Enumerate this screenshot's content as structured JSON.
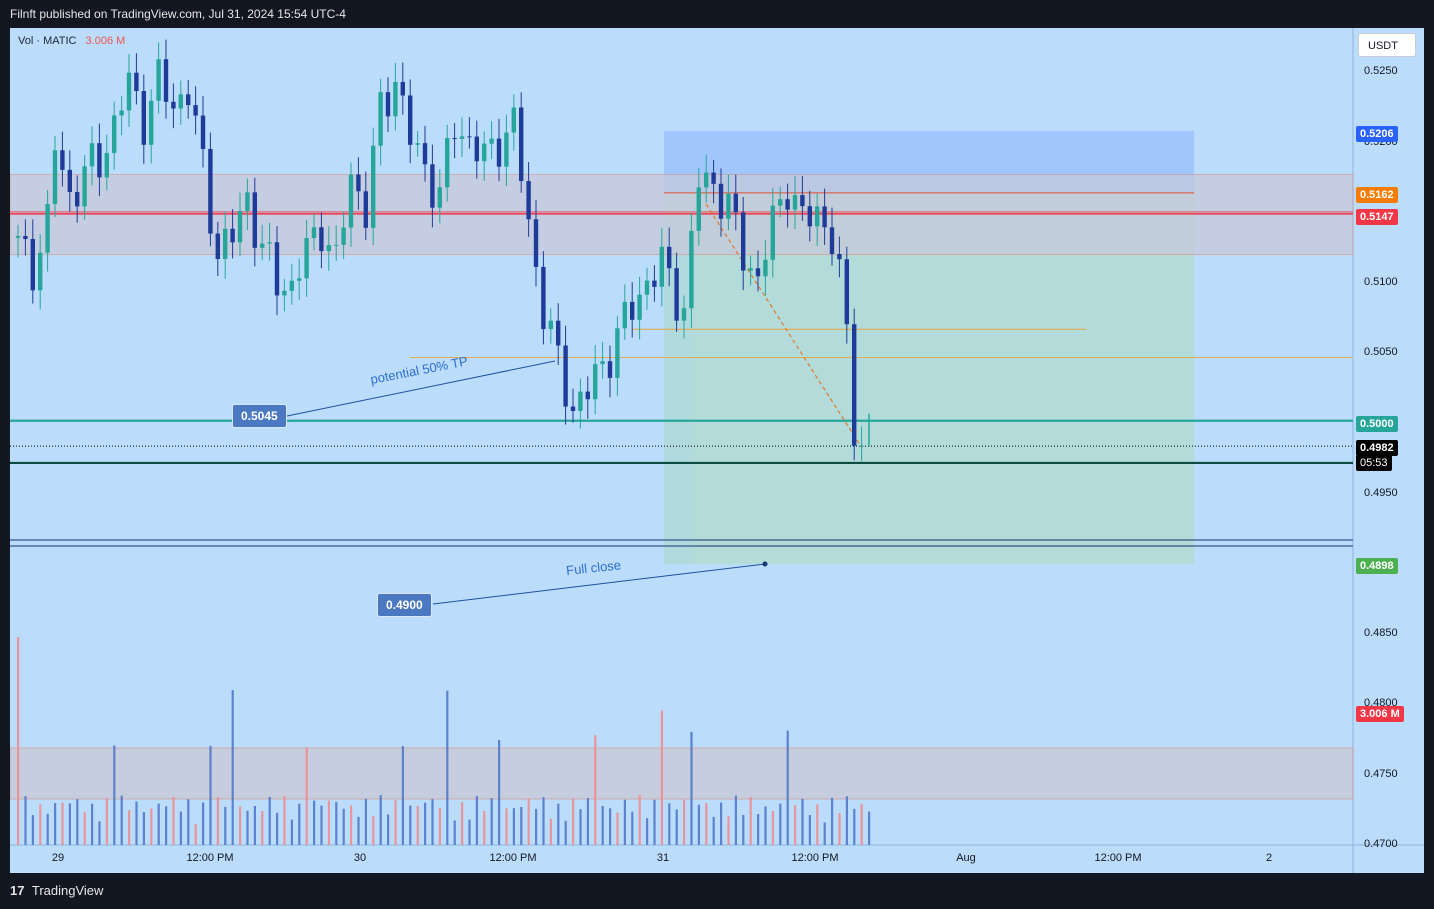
{
  "header": {
    "published": "Filnft published on TradingView.com, Jul 31, 2024 15:54 UTC-4"
  },
  "legend": {
    "label": "Vol · MATIC",
    "value": "3.006 M"
  },
  "currency": "USDT",
  "footer": {
    "logo_mark": "17",
    "logo_text": "TradingView"
  },
  "colors": {
    "background": "#bbdcfb",
    "up": "#26a69a",
    "down": "#1f3b99",
    "red_line": "#f23645",
    "green_line": "#26a69a",
    "orange": "#e8a33c"
  },
  "price_labels": [
    {
      "text": "0.5206",
      "color": "#2962ff"
    },
    {
      "text": "0.5162",
      "color": "#f57c00"
    },
    {
      "text": "0.5147",
      "color": "#f23645"
    },
    {
      "text": "0.5000",
      "color": "#26a69a"
    },
    {
      "text": "0.4982",
      "color": "#000000"
    },
    {
      "text": "05:53",
      "color": "#000000"
    },
    {
      "text": "0.4898",
      "color": "#4caf50"
    },
    {
      "text": "3.006 M",
      "color": "#f23645"
    }
  ],
  "annotations": {
    "tp_price": "0.5045",
    "tp_text": "potential 50% TP",
    "close_price": "0.4900",
    "close_text": "Full close"
  },
  "chart_data": {
    "type": "candlestick",
    "title": "Vol · MATIC",
    "ylabel": "USDT",
    "ylim": [
      0.47,
      0.528
    ],
    "y_ticks": [
      "0.5250",
      "0.5200",
      "0.5100",
      "0.5050",
      "0.4950",
      "0.4850",
      "0.4800",
      "0.4750",
      "0.4700"
    ],
    "x_ticks": [
      "29",
      "12:00 PM",
      "30",
      "12:00 PM",
      "31",
      "12:00 PM",
      "Aug",
      "12:00 PM",
      "2"
    ],
    "close_path": [
      [
        0,
        0.513
      ],
      [
        3,
        0.511
      ],
      [
        5,
        0.514
      ],
      [
        6,
        0.5195
      ],
      [
        8,
        0.516
      ],
      [
        10,
        0.5175
      ],
      [
        12,
        0.5185
      ],
      [
        14,
        0.521
      ],
      [
        16,
        0.524
      ],
      [
        18,
        0.5215
      ],
      [
        20,
        0.524
      ],
      [
        22,
        0.5225
      ],
      [
        24,
        0.5235
      ],
      [
        26,
        0.518
      ],
      [
        28,
        0.512
      ],
      [
        30,
        0.513
      ],
      [
        32,
        0.516
      ],
      [
        34,
        0.512
      ],
      [
        36,
        0.51
      ],
      [
        38,
        0.5095
      ],
      [
        40,
        0.512
      ],
      [
        42,
        0.514
      ],
      [
        44,
        0.511
      ],
      [
        46,
        0.5175
      ],
      [
        48,
        0.515
      ],
      [
        50,
        0.522
      ],
      [
        52,
        0.5245
      ],
      [
        54,
        0.52
      ],
      [
        56,
        0.518
      ],
      [
        58,
        0.516
      ],
      [
        60,
        0.521
      ],
      [
        62,
        0.52
      ],
      [
        64,
        0.5185
      ],
      [
        66,
        0.52
      ],
      [
        68,
        0.521
      ],
      [
        70,
        0.514
      ],
      [
        72,
        0.508
      ],
      [
        74,
        0.504
      ],
      [
        76,
        0.501
      ],
      [
        78,
        0.502
      ],
      [
        80,
        0.504
      ],
      [
        82,
        0.506
      ],
      [
        84,
        0.508
      ],
      [
        86,
        0.51
      ],
      [
        88,
        0.511
      ],
      [
        90,
        0.509
      ],
      [
        91,
        0.508
      ],
      [
        93,
        0.517
      ],
      [
        95,
        0.517
      ],
      [
        97,
        0.515
      ],
      [
        99,
        0.512
      ],
      [
        101,
        0.51
      ],
      [
        103,
        0.514
      ],
      [
        105,
        0.517
      ],
      [
        107,
        0.514
      ],
      [
        109,
        0.515
      ],
      [
        111,
        0.513
      ],
      [
        112,
        0.51
      ],
      [
        113,
        0.506
      ],
      [
        114,
        0.5
      ],
      [
        114.6,
        0.4982
      ]
    ],
    "levels": {
      "red_zone": [
        0.5118,
        0.5175
      ],
      "red_line": 0.5147,
      "range_top": 0.5206,
      "range_bottom": 0.4898,
      "entry": 0.5162,
      "midline": 0.5065,
      "tp1": 0.5045,
      "support": 0.5,
      "last": 0.4982,
      "dark_line": 0.497,
      "full_close": 0.49
    },
    "volume": {
      "current": "3.006 M",
      "bars_estimated": true
    }
  }
}
